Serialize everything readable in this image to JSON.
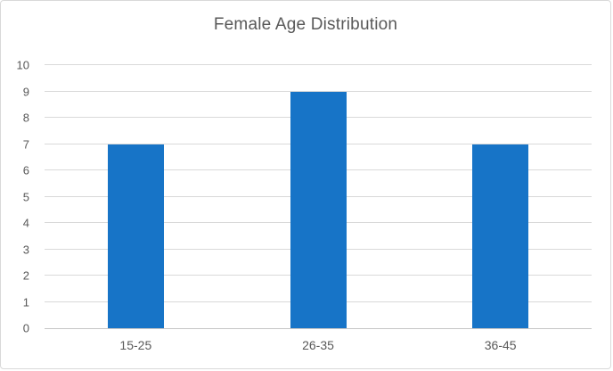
{
  "chart_data": {
    "type": "bar",
    "title": "Female Age Distribution",
    "categories": [
      "15-25",
      "26-35",
      "36-45"
    ],
    "values": [
      7,
      9,
      7
    ],
    "xlabel": "",
    "ylabel": "",
    "ylim": [
      0,
      10
    ],
    "ytick_step": 1,
    "grid": true,
    "legend": "none",
    "colors": {
      "bar": "#1774c7",
      "gridline": "#d9d9d9",
      "axis_line": "#c6c6c6",
      "text": "#595959",
      "border": "#d9d9d9",
      "background": "#ffffff"
    }
  }
}
